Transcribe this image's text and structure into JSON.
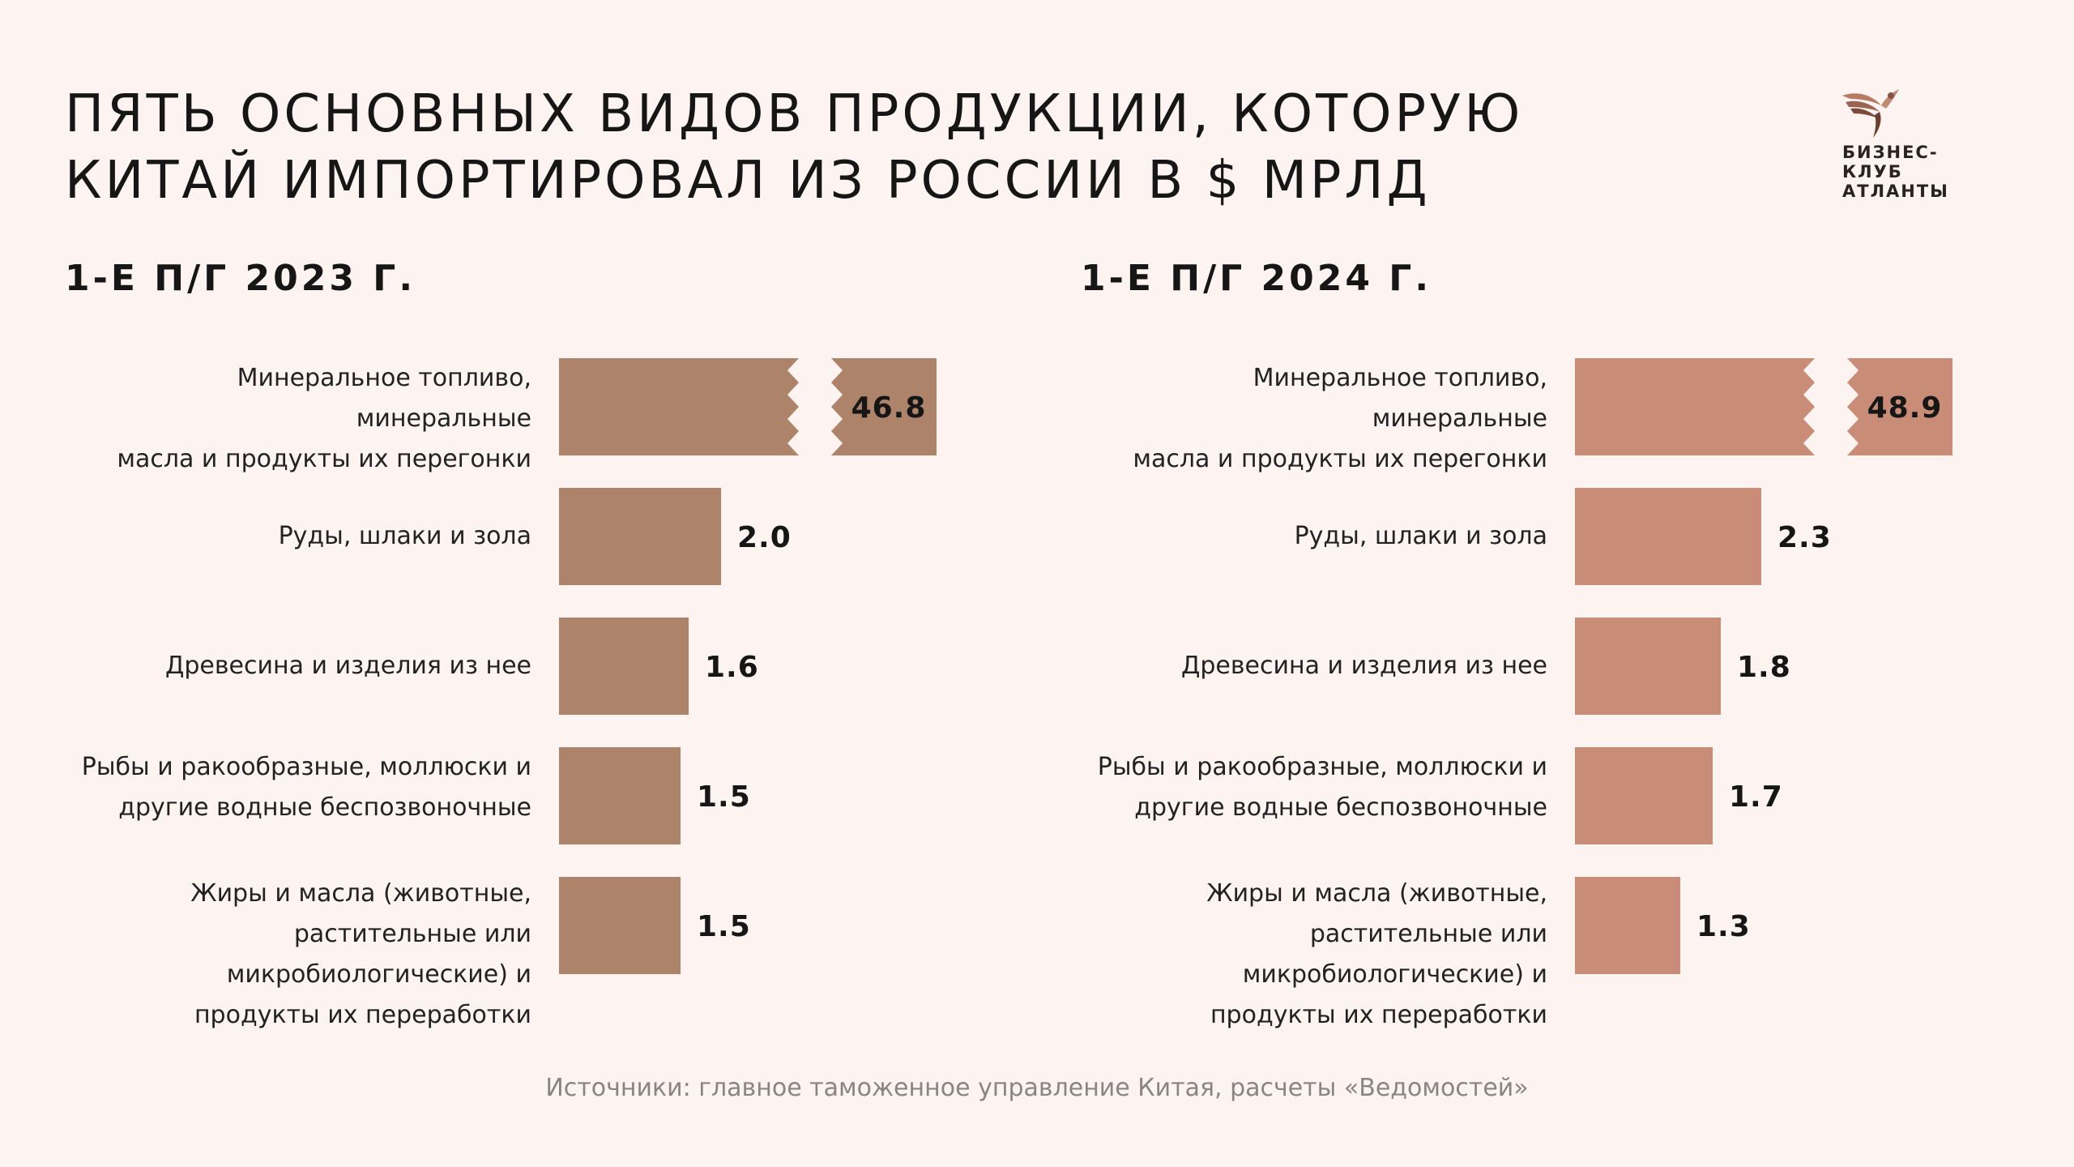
{
  "title": {
    "line1": "ПЯТЬ ОСНОВНЫХ ВИДОВ ПРОДУКЦИИ, КОТОРУЮ",
    "line2": "КИТАЙ ИМПОРТИРОВАЛ ИЗ РОССИИ В $ МРЛД"
  },
  "logo": {
    "lines": [
      "БИЗНЕС-",
      "КЛУБ",
      "АТЛАНТЫ"
    ],
    "icon": "winged-figure-icon"
  },
  "source": "Источники: главное таможенное управление Китая, расчеты «Ведомостей»",
  "colors": {
    "background": "#fdf3f0",
    "bar_2023": "#ad846a",
    "bar_2024": "#c98c77",
    "text": "#161616",
    "source_text": "#8a8484"
  },
  "chart_data": [
    {
      "type": "bar",
      "orientation": "horizontal",
      "title": "1-Е П/Г 2023 Г.",
      "unit": "$ млрд",
      "axis_break_on_first_bar": true,
      "categories": [
        "Минеральное топливо, минеральные масла и продукты их перегонки",
        "Руды, шлаки и зола",
        "Древесина и изделия из нее",
        "Рыбы и ракообразные, моллюски и другие водные беспозвоночные",
        "Жиры и масла (животные, растительные или микробиологические) и продукты их переработки"
      ],
      "category_lines": [
        [
          "Минеральное топливо, минеральные",
          "масла и продукты их перегонки"
        ],
        [
          "Руды, шлаки и зола"
        ],
        [
          "Древесина и изделия из нее"
        ],
        [
          "Рыбы и ракообразные, моллюски и",
          "другие водные беспозвоночные"
        ],
        [
          "Жиры и масла (животные,",
          "растительные или",
          "микробиологические) и",
          "продукты их переработки"
        ]
      ],
      "values": [
        46.8,
        2.0,
        1.6,
        1.5,
        1.5
      ],
      "labels": [
        "46.8",
        "2.0",
        "1.6",
        "1.5",
        "1.5"
      ],
      "color": "#ad846a"
    },
    {
      "type": "bar",
      "orientation": "horizontal",
      "title": "1-Е П/Г 2024 Г.",
      "unit": "$ млрд",
      "axis_break_on_first_bar": true,
      "categories": [
        "Минеральное топливо, минеральные масла и продукты их перегонки",
        "Руды, шлаки и зола",
        "Древесина и изделия из нее",
        "Рыбы и ракообразные, моллюски и другие водные беспозвоночные",
        "Жиры и масла (животные, растительные или микробиологические) и продукты их переработки"
      ],
      "category_lines": [
        [
          "Минеральное топливо, минеральные",
          "масла и продукты их перегонки"
        ],
        [
          "Руды, шлаки и зола"
        ],
        [
          "Древесина и изделия из нее"
        ],
        [
          "Рыбы и ракообразные, моллюски и",
          "другие водные беспозвоночные"
        ],
        [
          "Жиры и масла (животные,",
          "растительные или",
          "микробиологические) и",
          "продукты их переработки"
        ]
      ],
      "values": [
        48.9,
        2.3,
        1.8,
        1.7,
        1.3
      ],
      "labels": [
        "48.9",
        "2.3",
        "1.8",
        "1.7",
        "1.3"
      ],
      "color": "#c98c77"
    }
  ]
}
